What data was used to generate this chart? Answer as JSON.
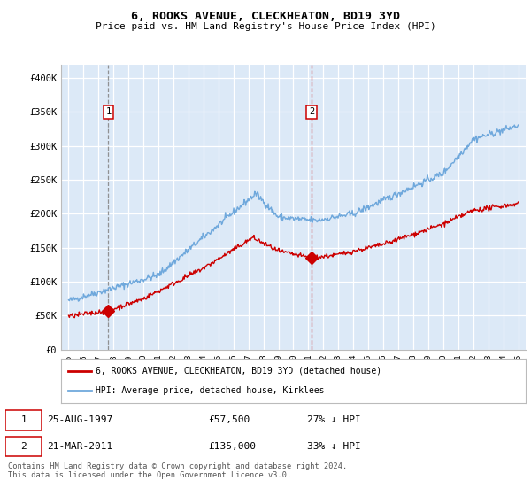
{
  "title": "6, ROOKS AVENUE, CLECKHEATON, BD19 3YD",
  "subtitle": "Price paid vs. HM Land Registry's House Price Index (HPI)",
  "bg_color": "#dce9f7",
  "plot_bg_color": "#dce9f7",
  "hpi_color": "#6fa8dc",
  "price_color": "#cc0000",
  "ylim": [
    0,
    420000
  ],
  "yticks": [
    0,
    50000,
    100000,
    150000,
    200000,
    250000,
    300000,
    350000,
    400000
  ],
  "ytick_labels": [
    "£0",
    "£50K",
    "£100K",
    "£150K",
    "£200K",
    "£250K",
    "£300K",
    "£350K",
    "£400K"
  ],
  "sale1_year": 1997.65,
  "sale1_price": 57500,
  "sale1_label": "1",
  "sale2_year": 2011.22,
  "sale2_price": 135000,
  "sale2_label": "2",
  "legend_label_red": "6, ROOKS AVENUE, CLECKHEATON, BD19 3YD (detached house)",
  "legend_label_blue": "HPI: Average price, detached house, Kirklees",
  "footer": "Contains HM Land Registry data © Crown copyright and database right 2024.\nThis data is licensed under the Open Government Licence v3.0.",
  "xmin": 1994.5,
  "xmax": 2025.5
}
